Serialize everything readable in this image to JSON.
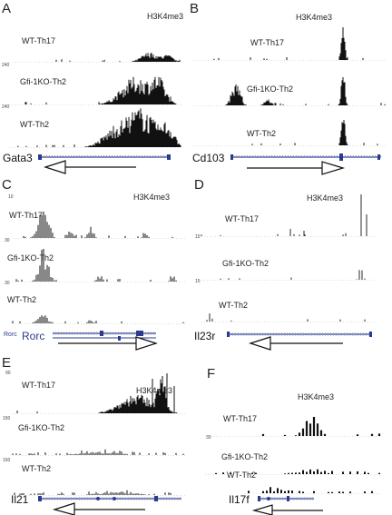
{
  "figure": {
    "colors": {
      "bars": "#111111",
      "gene_model": "#2b3a8c",
      "baseline": "#9aa0b0",
      "arrow": "#111111"
    },
    "panels": [
      {
        "label": "A",
        "mark": "H3K4me3",
        "gene": "Gata3",
        "tracks": [
          {
            "name": "WT-Th17",
            "scale": "240"
          },
          {
            "name": "Gfi-1KO-Th2",
            "scale": "240"
          },
          {
            "name": "WT-Th2",
            "scale": ""
          }
        ],
        "arrow": "left"
      },
      {
        "label": "B",
        "mark": "H3K4me3",
        "gene": "Cd103",
        "tracks": [
          {
            "name": "WT-Th17",
            "scale": ""
          },
          {
            "name": "Gfi-1KO-Th2",
            "scale": ""
          },
          {
            "name": "WT-Th2",
            "scale": ""
          }
        ],
        "arrow": "right"
      },
      {
        "label": "C",
        "mark": "H3K4me3",
        "gene": "Rorc",
        "gene_small": "Rorc",
        "tracks": [
          {
            "name": "WT-Th17",
            "scale": "10"
          },
          {
            "name": "Gfi-1KO-Th2",
            "scale": "30"
          },
          {
            "name": "WT-Th2",
            "scale": "30"
          }
        ],
        "arrow": "right"
      },
      {
        "label": "D",
        "mark": "H3K4me3",
        "gene": "Il23r",
        "tracks": [
          {
            "name": "WT-Th17",
            "scale": "15"
          },
          {
            "name": "Gfi-1KO-Th2",
            "scale": "15"
          },
          {
            "name": "WT-Th2",
            "scale": ""
          }
        ],
        "arrow": "left"
      },
      {
        "label": "E",
        "mark": "H3K4me3",
        "gene": "Il21",
        "tracks": [
          {
            "name": "WT-Th17",
            "scale": "90"
          },
          {
            "name": "Gfi-1KO-Th2",
            "scale": "150"
          },
          {
            "name": "WT-Th2",
            "scale": "150"
          }
        ],
        "arrow": "left"
      },
      {
        "label": "F",
        "mark": "H3K4me3",
        "gene": "Il17f",
        "tracks": [
          {
            "name": "WT-Th17",
            "scale": "30"
          },
          {
            "name": "Gfi-1KO-Th2",
            "scale": ""
          },
          {
            "name": "WT-Th2",
            "scale": ""
          }
        ],
        "arrow": "left"
      }
    ]
  }
}
